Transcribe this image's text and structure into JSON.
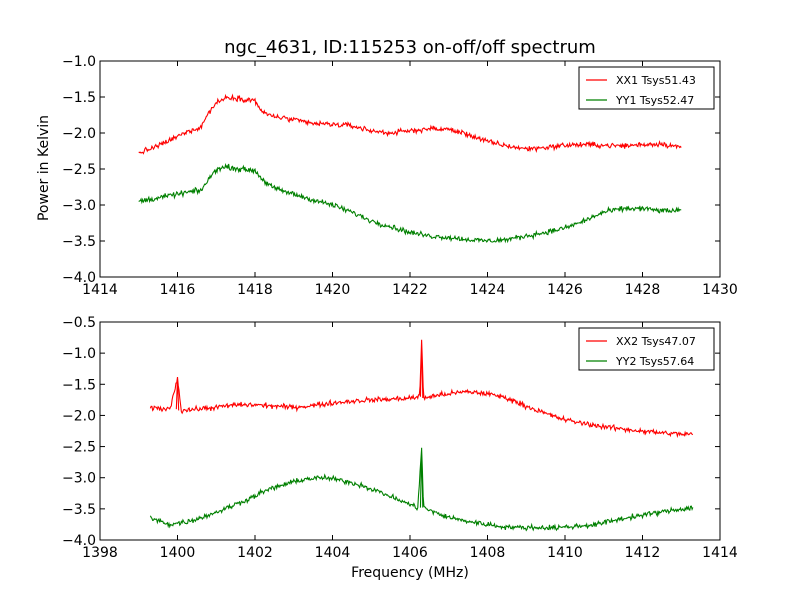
{
  "figure": {
    "title": "ngc_4631, ID:115253 on-off/off spectrum",
    "xlabel": "Frequency (MHz)",
    "ylabel": "Power in Kelvin"
  },
  "colors": {
    "red": "#ff0000",
    "green": "#008000"
  },
  "chart_data": [
    {
      "type": "line",
      "title": "ngc_4631, ID:115253 on-off/off spectrum",
      "xlabel": "",
      "ylabel": "Power in Kelvin",
      "xlim": [
        1414,
        1430
      ],
      "ylim": [
        -4.0,
        -1.0
      ],
      "xticks": [
        "1414",
        "1416",
        "1418",
        "1420",
        "1422",
        "1424",
        "1426",
        "1428",
        "1430"
      ],
      "yticks": [
        "−4.0",
        "−3.5",
        "−3.0",
        "−2.5",
        "−2.0",
        "−1.5",
        "−1.0"
      ],
      "legend": "top-right",
      "grid": false,
      "series": [
        {
          "name": "XX1 Tsys51.43",
          "color": "#ff0000",
          "points": [
            [
              1415.0,
              -2.28
            ],
            [
              1415.5,
              -2.18
            ],
            [
              1416.0,
              -2.05
            ],
            [
              1416.3,
              -1.97
            ],
            [
              1416.6,
              -1.92
            ],
            [
              1416.8,
              -1.72
            ],
            [
              1417.0,
              -1.58
            ],
            [
              1417.3,
              -1.5
            ],
            [
              1417.6,
              -1.52
            ],
            [
              1418.0,
              -1.55
            ],
            [
              1418.2,
              -1.72
            ],
            [
              1418.5,
              -1.77
            ],
            [
              1419.0,
              -1.82
            ],
            [
              1419.5,
              -1.87
            ],
            [
              1420.0,
              -1.88
            ],
            [
              1420.5,
              -1.9
            ],
            [
              1421.0,
              -1.97
            ],
            [
              1421.5,
              -2.0
            ],
            [
              1422.0,
              -1.97
            ],
            [
              1422.5,
              -1.94
            ],
            [
              1423.0,
              -1.95
            ],
            [
              1423.5,
              -2.02
            ],
            [
              1424.0,
              -2.12
            ],
            [
              1424.5,
              -2.18
            ],
            [
              1425.0,
              -2.22
            ],
            [
              1425.5,
              -2.2
            ],
            [
              1426.0,
              -2.17
            ],
            [
              1426.5,
              -2.16
            ],
            [
              1427.0,
              -2.17
            ],
            [
              1427.5,
              -2.18
            ],
            [
              1428.0,
              -2.16
            ],
            [
              1428.5,
              -2.15
            ],
            [
              1429.0,
              -2.2
            ]
          ]
        },
        {
          "name": "YY1 Tsys52.47",
          "color": "#008000",
          "points": [
            [
              1415.0,
              -2.95
            ],
            [
              1415.5,
              -2.9
            ],
            [
              1416.0,
              -2.85
            ],
            [
              1416.3,
              -2.82
            ],
            [
              1416.6,
              -2.8
            ],
            [
              1416.8,
              -2.65
            ],
            [
              1417.0,
              -2.5
            ],
            [
              1417.3,
              -2.47
            ],
            [
              1417.6,
              -2.5
            ],
            [
              1418.0,
              -2.52
            ],
            [
              1418.2,
              -2.65
            ],
            [
              1418.5,
              -2.77
            ],
            [
              1419.0,
              -2.85
            ],
            [
              1419.5,
              -2.93
            ],
            [
              1420.0,
              -3.0
            ],
            [
              1420.5,
              -3.1
            ],
            [
              1421.0,
              -3.22
            ],
            [
              1421.5,
              -3.3
            ],
            [
              1422.0,
              -3.38
            ],
            [
              1422.5,
              -3.43
            ],
            [
              1423.0,
              -3.45
            ],
            [
              1423.5,
              -3.48
            ],
            [
              1424.0,
              -3.5
            ],
            [
              1424.5,
              -3.48
            ],
            [
              1425.0,
              -3.43
            ],
            [
              1425.5,
              -3.38
            ],
            [
              1426.0,
              -3.32
            ],
            [
              1426.5,
              -3.22
            ],
            [
              1427.0,
              -3.1
            ],
            [
              1427.5,
              -3.05
            ],
            [
              1428.0,
              -3.05
            ],
            [
              1428.5,
              -3.08
            ],
            [
              1429.0,
              -3.08
            ]
          ]
        }
      ]
    },
    {
      "type": "line",
      "title": "",
      "xlabel": "Frequency (MHz)",
      "ylabel": "",
      "xlim": [
        1398,
        1414
      ],
      "ylim": [
        -4.0,
        -0.5
      ],
      "xticks": [
        "1398",
        "1400",
        "1402",
        "1404",
        "1406",
        "1408",
        "1410",
        "1412",
        "1414"
      ],
      "yticks": [
        "−4.0",
        "−3.5",
        "−3.0",
        "−2.5",
        "−2.0",
        "−1.5",
        "−1.0",
        "−0.5"
      ],
      "legend": "top-right",
      "grid": false,
      "series": [
        {
          "name": "XX2 Tsys47.07",
          "color": "#ff0000",
          "points": [
            [
              1399.3,
              -1.88
            ],
            [
              1399.8,
              -1.9
            ],
            [
              1400.0,
              -1.4
            ],
            [
              1400.1,
              -1.92
            ],
            [
              1400.5,
              -1.9
            ],
            [
              1401.0,
              -1.87
            ],
            [
              1401.5,
              -1.83
            ],
            [
              1402.0,
              -1.83
            ],
            [
              1402.5,
              -1.85
            ],
            [
              1403.0,
              -1.87
            ],
            [
              1403.5,
              -1.84
            ],
            [
              1404.0,
              -1.8
            ],
            [
              1404.5,
              -1.77
            ],
            [
              1405.0,
              -1.75
            ],
            [
              1405.5,
              -1.74
            ],
            [
              1406.0,
              -1.72
            ],
            [
              1406.25,
              -1.7
            ],
            [
              1406.3,
              -0.8
            ],
            [
              1406.35,
              -1.72
            ],
            [
              1406.5,
              -1.7
            ],
            [
              1407.0,
              -1.65
            ],
            [
              1407.5,
              -1.62
            ],
            [
              1408.0,
              -1.65
            ],
            [
              1408.5,
              -1.72
            ],
            [
              1409.0,
              -1.85
            ],
            [
              1409.5,
              -1.97
            ],
            [
              1410.0,
              -2.07
            ],
            [
              1410.5,
              -2.13
            ],
            [
              1411.0,
              -2.18
            ],
            [
              1411.5,
              -2.22
            ],
            [
              1412.0,
              -2.25
            ],
            [
              1412.5,
              -2.28
            ],
            [
              1413.0,
              -2.3
            ],
            [
              1413.3,
              -2.3
            ]
          ]
        },
        {
          "name": "YY2 Tsys57.64",
          "color": "#008000",
          "points": [
            [
              1399.3,
              -3.65
            ],
            [
              1399.8,
              -3.75
            ],
            [
              1400.3,
              -3.7
            ],
            [
              1400.8,
              -3.6
            ],
            [
              1401.3,
              -3.48
            ],
            [
              1401.8,
              -3.35
            ],
            [
              1402.3,
              -3.2
            ],
            [
              1402.8,
              -3.1
            ],
            [
              1403.3,
              -3.02
            ],
            [
              1403.8,
              -3.0
            ],
            [
              1404.3,
              -3.05
            ],
            [
              1404.8,
              -3.13
            ],
            [
              1405.3,
              -3.25
            ],
            [
              1405.8,
              -3.38
            ],
            [
              1406.2,
              -3.48
            ],
            [
              1406.3,
              -2.52
            ],
            [
              1406.35,
              -3.48
            ],
            [
              1406.8,
              -3.6
            ],
            [
              1407.3,
              -3.68
            ],
            [
              1407.8,
              -3.73
            ],
            [
              1408.3,
              -3.78
            ],
            [
              1408.8,
              -3.8
            ],
            [
              1409.3,
              -3.8
            ],
            [
              1409.8,
              -3.8
            ],
            [
              1410.3,
              -3.78
            ],
            [
              1410.8,
              -3.75
            ],
            [
              1411.3,
              -3.68
            ],
            [
              1411.8,
              -3.62
            ],
            [
              1412.3,
              -3.57
            ],
            [
              1412.8,
              -3.52
            ],
            [
              1413.3,
              -3.48
            ]
          ]
        }
      ]
    }
  ]
}
